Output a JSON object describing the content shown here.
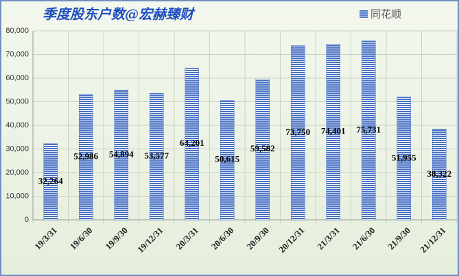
{
  "chart_data": {
    "type": "bar",
    "title": "季度股东户数@宏赫臻财",
    "categories": [
      "19/3/31",
      "19/6/30",
      "19/9/30",
      "19/12/31",
      "20/3/31",
      "20/6/30",
      "20/9/30",
      "20/12/31",
      "21/3/31",
      "21/6/30",
      "21/9/30",
      "21/12/31"
    ],
    "series": [
      {
        "name": "同花顺",
        "color": "#4a72c4",
        "values": [
          32264,
          52986,
          54894,
          53577,
          64201,
          50615,
          59582,
          73750,
          74401,
          75731,
          51955,
          38322
        ],
        "value_labels": [
          "32,264",
          "52,986",
          "54,894",
          "53,577",
          "64,201",
          "50,615",
          "59,582",
          "73,750",
          "74,401",
          "75,731",
          "51,955",
          "38,322"
        ]
      }
    ],
    "ylim": [
      0,
      80000
    ],
    "yticks": [
      0,
      {
        "value": 10000,
        "label": "10,000"
      },
      {
        "value": 20000,
        "label": "20,000"
      },
      {
        "value": 30000,
        "label": "30,000"
      },
      {
        "value": 40000,
        "label": "40,000"
      },
      {
        "value": 50000,
        "label": "50,000"
      },
      {
        "value": 60000,
        "label": "60,000"
      },
      {
        "value": 70000,
        "label": "70,000"
      },
      {
        "value": 80000,
        "label": "80,000"
      }
    ],
    "grid": true,
    "legend": "top-right"
  }
}
